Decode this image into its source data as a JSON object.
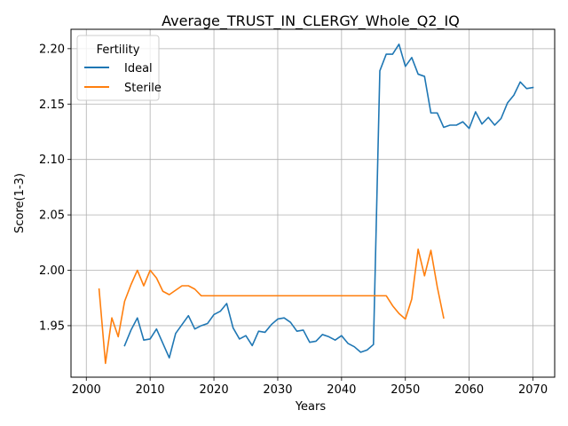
{
  "chart_data": {
    "type": "line",
    "title": "Average_TRUST_IN_CLERGY_Whole_Q2_IQ",
    "xlabel": "Years",
    "ylabel": "Score(1-3)",
    "xlim": [
      1997.6,
      2073.4
    ],
    "ylim": [
      1.9035,
      2.2175
    ],
    "xticks": [
      2000,
      2010,
      2020,
      2030,
      2040,
      2050,
      2060,
      2070
    ],
    "yticks": [
      1.95,
      2.0,
      2.05,
      2.1,
      2.15,
      2.2
    ],
    "xtick_labels": [
      "2000",
      "2010",
      "2020",
      "2030",
      "2040",
      "2050",
      "2060",
      "2070"
    ],
    "ytick_labels": [
      "1.95",
      "2.00",
      "2.05",
      "2.10",
      "2.15",
      "2.20"
    ],
    "grid": true,
    "legend": {
      "title": "Fertility",
      "position": "upper left"
    },
    "series": [
      {
        "name": "Ideal",
        "color": "#1f77b4",
        "x": [
          2006,
          2007,
          2008,
          2009,
          2010,
          2011,
          2012,
          2013,
          2014,
          2015,
          2016,
          2017,
          2018,
          2019,
          2020,
          2021,
          2022,
          2023,
          2024,
          2025,
          2026,
          2027,
          2028,
          2029,
          2030,
          2031,
          2032,
          2033,
          2034,
          2035,
          2036,
          2037,
          2038,
          2039,
          2040,
          2041,
          2042,
          2043,
          2044,
          2045,
          2046,
          2047,
          2048,
          2049,
          2050,
          2051,
          2052,
          2053,
          2054,
          2055,
          2056,
          2057,
          2058,
          2059,
          2060,
          2061,
          2062,
          2063,
          2064,
          2065,
          2066,
          2067,
          2068,
          2069,
          2070
        ],
        "values": [
          1.932,
          1.946,
          1.957,
          1.937,
          1.938,
          1.947,
          1.934,
          1.921,
          1.943,
          1.951,
          1.959,
          1.947,
          1.95,
          1.952,
          1.96,
          1.963,
          1.97,
          1.948,
          1.938,
          1.941,
          1.932,
          1.945,
          1.944,
          1.951,
          1.956,
          1.957,
          1.953,
          1.945,
          1.946,
          1.935,
          1.936,
          1.942,
          1.94,
          1.937,
          1.941,
          1.934,
          1.931,
          1.926,
          1.928,
          1.933,
          2.18,
          2.195,
          2.195,
          2.204,
          2.184,
          2.192,
          2.177,
          2.175,
          2.142,
          2.142,
          2.129,
          2.131,
          2.131,
          2.134,
          2.128,
          2.143,
          2.132,
          2.138,
          2.131,
          2.137,
          2.151,
          2.158,
          2.17,
          2.164,
          2.165
        ]
      },
      {
        "name": "Sterile",
        "color": "#ff7f0e",
        "x": [
          2002,
          2003,
          2004,
          2005,
          2006,
          2007,
          2008,
          2009,
          2010,
          2011,
          2012,
          2013,
          2014,
          2015,
          2016,
          2017,
          2018,
          2019,
          2020,
          2021,
          2022,
          2023,
          2024,
          2025,
          2026,
          2027,
          2028,
          2029,
          2030,
          2031,
          2032,
          2033,
          2034,
          2035,
          2036,
          2037,
          2038,
          2039,
          2040,
          2041,
          2042,
          2043,
          2044,
          2045,
          2046,
          2047,
          2048,
          2049,
          2050,
          2051,
          2052,
          2053,
          2054,
          2055,
          2056
        ],
        "values": [
          1.983,
          1.916,
          1.957,
          1.94,
          1.972,
          1.987,
          2.0,
          1.986,
          2.0,
          1.993,
          1.981,
          1.978,
          1.982,
          1.986,
          1.986,
          1.983,
          1.977,
          1.977,
          1.977,
          1.977,
          1.977,
          1.977,
          1.977,
          1.977,
          1.977,
          1.977,
          1.977,
          1.977,
          1.977,
          1.977,
          1.977,
          1.977,
          1.977,
          1.977,
          1.977,
          1.977,
          1.977,
          1.977,
          1.977,
          1.977,
          1.977,
          1.977,
          1.977,
          1.977,
          1.977,
          1.977,
          1.968,
          1.961,
          1.956,
          1.974,
          2.019,
          1.995,
          2.018,
          1.985,
          1.957
        ]
      }
    ]
  }
}
